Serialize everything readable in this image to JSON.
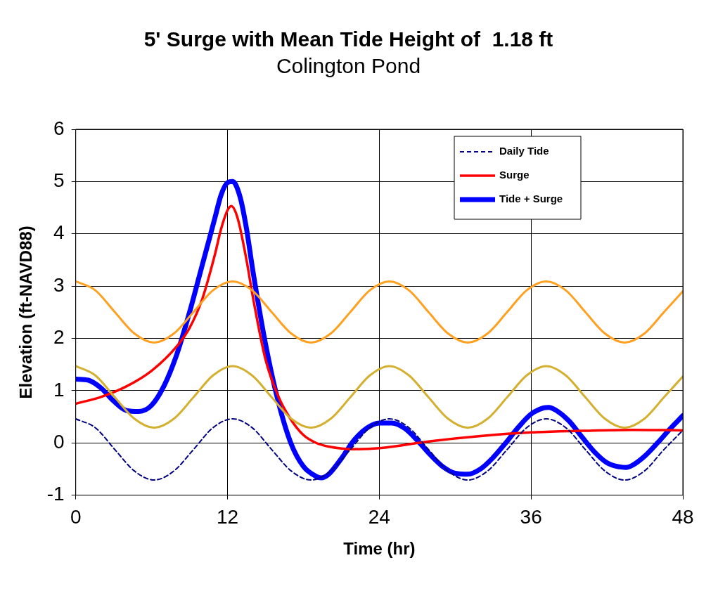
{
  "chart_data": {
    "type": "line",
    "title": "5' Surge with Mean Tide Height of  1.18 ft",
    "subtitle": "Colington Pond",
    "xlabel": "Time (hr)",
    "ylabel": "Elevation (ft-NAVD88)",
    "xlim": [
      0,
      48
    ],
    "xticks": [
      0,
      12,
      24,
      36,
      48
    ],
    "ylim": [
      -1,
      6
    ],
    "yticks": [
      -1,
      0,
      1,
      2,
      3,
      4,
      5,
      6
    ],
    "grid": true,
    "legend": "top right",
    "marker": "none",
    "series": [
      {
        "color": "#ffa020",
        "line_style": "solid",
        "x": [
          0,
          1.55,
          3.1,
          4.65,
          6.2,
          7.75,
          9.3,
          10.85,
          12.4,
          13.95,
          15.5,
          17.05,
          18.6,
          20.15,
          21.7,
          23.25,
          24.8,
          26.35,
          27.9,
          29.45,
          31,
          32.55,
          34.1,
          35.65,
          37.2,
          38.75,
          40.3,
          41.85,
          43.4,
          44.95,
          46.5,
          48
        ],
        "values": [
          3.09,
          2.92,
          2.5,
          2.09,
          1.92,
          2.09,
          2.5,
          2.92,
          3.09,
          2.92,
          2.5,
          2.09,
          1.92,
          2.09,
          2.5,
          2.92,
          3.09,
          2.92,
          2.5,
          2.09,
          1.92,
          2.09,
          2.5,
          2.92,
          3.09,
          2.92,
          2.5,
          2.09,
          1.92,
          2.09,
          2.5,
          2.9
        ]
      },
      {
        "color": "#d4b030",
        "line_style": "solid",
        "x": [
          0,
          1.55,
          3.1,
          4.65,
          6.2,
          7.75,
          9.3,
          10.85,
          12.4,
          13.95,
          15.5,
          17.05,
          18.6,
          20.15,
          21.7,
          23.25,
          24.8,
          26.35,
          27.9,
          29.45,
          31,
          32.55,
          34.1,
          35.65,
          37.2,
          38.75,
          40.3,
          41.85,
          43.4,
          44.95,
          46.5,
          48
        ],
        "values": [
          1.47,
          1.29,
          0.87,
          0.46,
          0.29,
          0.46,
          0.87,
          1.29,
          1.47,
          1.29,
          0.87,
          0.46,
          0.29,
          0.46,
          0.87,
          1.29,
          1.47,
          1.29,
          0.87,
          0.46,
          0.29,
          0.46,
          0.87,
          1.29,
          1.47,
          1.29,
          0.87,
          0.46,
          0.29,
          0.46,
          0.87,
          1.27
        ]
      },
      {
        "name": "Daily Tide",
        "color": "#000080",
        "line_style": "dashed",
        "x": [
          0,
          1.55,
          3.1,
          4.65,
          6.2,
          7.75,
          9.3,
          10.85,
          12.4,
          13.95,
          15.5,
          17.05,
          18.6,
          20.15,
          21.7,
          23.25,
          24.8,
          26.35,
          27.9,
          29.45,
          31,
          32.55,
          34.1,
          35.65,
          37.2,
          38.75,
          40.3,
          41.85,
          43.4,
          44.95,
          46.5,
          48
        ],
        "values": [
          0.46,
          0.29,
          -0.13,
          -0.54,
          -0.71,
          -0.54,
          -0.13,
          0.29,
          0.46,
          0.29,
          -0.13,
          -0.54,
          -0.71,
          -0.54,
          -0.13,
          0.29,
          0.46,
          0.29,
          -0.13,
          -0.54,
          -0.71,
          -0.54,
          -0.13,
          0.29,
          0.46,
          0.29,
          -0.13,
          -0.54,
          -0.71,
          -0.54,
          -0.13,
          0.24
        ]
      },
      {
        "name": "Surge",
        "color": "#ff0000",
        "line_style": "solid",
        "x": [
          0,
          2,
          4,
          6,
          8,
          9,
          10,
          11,
          11.5,
          12,
          12.3,
          12.8,
          13.5,
          14,
          15,
          16,
          17,
          18,
          19,
          20,
          22,
          24,
          28,
          32,
          36,
          40,
          44,
          48
        ],
        "values": [
          0.75,
          0.88,
          1.08,
          1.38,
          1.85,
          2.2,
          2.75,
          3.6,
          4.1,
          4.45,
          4.53,
          4.3,
          3.5,
          2.8,
          1.6,
          0.9,
          0.45,
          0.15,
          0.0,
          -0.07,
          -0.12,
          -0.1,
          0.03,
          0.13,
          0.2,
          0.23,
          0.25,
          0.24
        ]
      },
      {
        "name": "Tide + Surge",
        "color": "#0000ff",
        "line_style": "solid",
        "x": [
          0,
          1,
          2,
          3,
          4,
          5,
          6,
          7,
          8,
          9,
          10,
          11,
          11.5,
          12,
          12.4,
          13,
          13.5,
          14,
          15,
          16,
          17,
          18,
          19,
          19.4,
          20,
          21,
          22,
          23,
          24,
          25,
          26,
          27,
          28,
          29,
          30,
          31,
          32,
          33,
          34,
          35,
          36,
          37,
          37.4,
          38,
          39,
          40,
          41,
          42,
          43,
          43.5,
          44,
          45,
          46,
          47,
          48
        ],
        "values": [
          1.22,
          1.2,
          1.05,
          0.8,
          0.62,
          0.6,
          0.72,
          1.1,
          1.7,
          2.5,
          3.4,
          4.3,
          4.75,
          4.98,
          5.0,
          4.7,
          4.1,
          3.3,
          1.9,
          0.8,
          0.0,
          -0.45,
          -0.64,
          -0.67,
          -0.6,
          -0.3,
          0.05,
          0.28,
          0.38,
          0.38,
          0.28,
          0.05,
          -0.22,
          -0.45,
          -0.58,
          -0.6,
          -0.5,
          -0.28,
          0.0,
          0.3,
          0.55,
          0.67,
          0.68,
          0.62,
          0.42,
          0.12,
          -0.17,
          -0.38,
          -0.46,
          -0.47,
          -0.43,
          -0.25,
          0.0,
          0.27,
          0.52
        ]
      }
    ]
  }
}
